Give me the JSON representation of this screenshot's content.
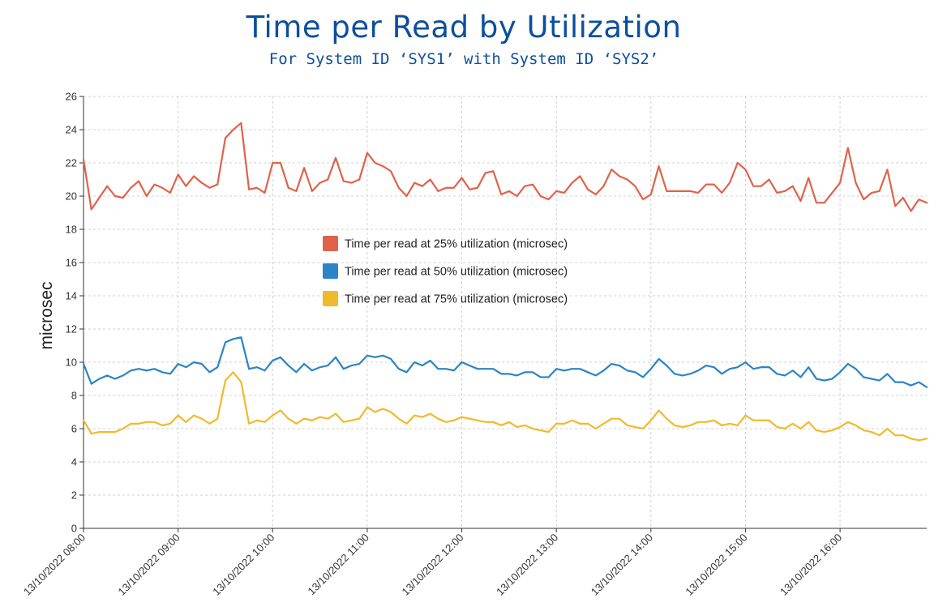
{
  "chart_data": {
    "type": "line",
    "title": "Time per Read by Utilization",
    "subtitle": "For System ID ‘SYS1’ with System ID ‘SYS2’",
    "xlabel": "",
    "ylabel": "microsec",
    "ylim": [
      0,
      26
    ],
    "yticks": [
      0,
      2,
      4,
      6,
      8,
      10,
      12,
      14,
      16,
      18,
      20,
      22,
      24,
      26
    ],
    "xlim": [
      "13/10/2022 08:00",
      "13/10/2022 16:55"
    ],
    "x_tick_labels": [
      "13/10/2022 08:00",
      "13/10/2022 09:00",
      "13/10/2022 10:00",
      "13/10/2022 11:00",
      "13/10/2022 12:00",
      "13/10/2022 13:00",
      "13/10/2022 14:00",
      "13/10/2022 15:00",
      "13/10/2022 16:00"
    ],
    "x": [
      "13/10/2022 08:00",
      "13/10/2022 08:05",
      "13/10/2022 08:10",
      "13/10/2022 08:15",
      "13/10/2022 08:20",
      "13/10/2022 08:25",
      "13/10/2022 08:30",
      "13/10/2022 08:35",
      "13/10/2022 08:40",
      "13/10/2022 08:45",
      "13/10/2022 08:50",
      "13/10/2022 08:55",
      "13/10/2022 09:00",
      "13/10/2022 09:05",
      "13/10/2022 09:10",
      "13/10/2022 09:15",
      "13/10/2022 09:20",
      "13/10/2022 09:25",
      "13/10/2022 09:30",
      "13/10/2022 09:35",
      "13/10/2022 09:40",
      "13/10/2022 09:45",
      "13/10/2022 09:50",
      "13/10/2022 09:55",
      "13/10/2022 10:00",
      "13/10/2022 10:05",
      "13/10/2022 10:10",
      "13/10/2022 10:15",
      "13/10/2022 10:20",
      "13/10/2022 10:25",
      "13/10/2022 10:30",
      "13/10/2022 10:35",
      "13/10/2022 10:40",
      "13/10/2022 10:45",
      "13/10/2022 10:50",
      "13/10/2022 10:55",
      "13/10/2022 11:00",
      "13/10/2022 11:05",
      "13/10/2022 11:10",
      "13/10/2022 11:15",
      "13/10/2022 11:20",
      "13/10/2022 11:25",
      "13/10/2022 11:30",
      "13/10/2022 11:35",
      "13/10/2022 11:40",
      "13/10/2022 11:45",
      "13/10/2022 11:50",
      "13/10/2022 11:55",
      "13/10/2022 12:00",
      "13/10/2022 12:05",
      "13/10/2022 12:10",
      "13/10/2022 12:15",
      "13/10/2022 12:20",
      "13/10/2022 12:25",
      "13/10/2022 12:30",
      "13/10/2022 12:35",
      "13/10/2022 12:40",
      "13/10/2022 12:45",
      "13/10/2022 12:50",
      "13/10/2022 12:55",
      "13/10/2022 13:00",
      "13/10/2022 13:05",
      "13/10/2022 13:10",
      "13/10/2022 13:15",
      "13/10/2022 13:20",
      "13/10/2022 13:25",
      "13/10/2022 13:30",
      "13/10/2022 13:35",
      "13/10/2022 13:40",
      "13/10/2022 13:45",
      "13/10/2022 13:50",
      "13/10/2022 13:55",
      "13/10/2022 14:00",
      "13/10/2022 14:05",
      "13/10/2022 14:10",
      "13/10/2022 14:15",
      "13/10/2022 14:20",
      "13/10/2022 14:25",
      "13/10/2022 14:30",
      "13/10/2022 14:35",
      "13/10/2022 14:40",
      "13/10/2022 14:45",
      "13/10/2022 14:50",
      "13/10/2022 14:55",
      "13/10/2022 15:00",
      "13/10/2022 15:05",
      "13/10/2022 15:10",
      "13/10/2022 15:15",
      "13/10/2022 15:20",
      "13/10/2022 15:25",
      "13/10/2022 15:30",
      "13/10/2022 15:35",
      "13/10/2022 15:40",
      "13/10/2022 15:45",
      "13/10/2022 15:50",
      "13/10/2022 15:55",
      "13/10/2022 16:00",
      "13/10/2022 16:05",
      "13/10/2022 16:10",
      "13/10/2022 16:15",
      "13/10/2022 16:20",
      "13/10/2022 16:25",
      "13/10/2022 16:30",
      "13/10/2022 16:35",
      "13/10/2022 16:40",
      "13/10/2022 16:45",
      "13/10/2022 16:50",
      "13/10/2022 16:55"
    ],
    "series": [
      {
        "name": "Time per read at 25% utilization (microsec)",
        "color": "#e0624a",
        "values": [
          22.2,
          19.2,
          19.9,
          20.6,
          20.0,
          19.9,
          20.5,
          20.9,
          20.0,
          20.7,
          20.5,
          20.2,
          21.3,
          20.6,
          21.2,
          20.8,
          20.5,
          20.7,
          23.5,
          24.0,
          24.4,
          20.4,
          20.5,
          20.2,
          22.0,
          22.0,
          20.5,
          20.3,
          21.7,
          20.3,
          20.8,
          21.0,
          22.3,
          20.9,
          20.8,
          21.0,
          22.6,
          22.0,
          21.8,
          21.5,
          20.5,
          20.0,
          20.8,
          20.6,
          21.0,
          20.3,
          20.5,
          20.5,
          21.1,
          20.4,
          20.5,
          21.4,
          21.5,
          20.1,
          20.3,
          20.0,
          20.6,
          20.7,
          20.0,
          19.8,
          20.3,
          20.2,
          20.8,
          21.2,
          20.4,
          20.1,
          20.6,
          21.6,
          21.2,
          21.0,
          20.6,
          19.8,
          20.1,
          21.8,
          20.3,
          20.3,
          20.3,
          20.3,
          20.2,
          20.7,
          20.7,
          20.2,
          20.8,
          22.0,
          21.6,
          20.6,
          20.6,
          21.0,
          20.2,
          20.3,
          20.6,
          19.7,
          21.1,
          19.6,
          19.6,
          20.2,
          20.8,
          22.9,
          20.8,
          19.8,
          20.2,
          20.3,
          21.6,
          19.4,
          19.9,
          19.1,
          19.8,
          19.6
        ]
      },
      {
        "name": "Time per read at 50% utilization (microsec)",
        "color": "#2b84c5",
        "values": [
          9.9,
          8.7,
          9.0,
          9.2,
          9.0,
          9.2,
          9.5,
          9.6,
          9.5,
          9.6,
          9.4,
          9.3,
          9.9,
          9.7,
          10.0,
          9.9,
          9.4,
          9.7,
          11.2,
          11.4,
          11.5,
          9.6,
          9.7,
          9.5,
          10.1,
          10.3,
          9.8,
          9.4,
          9.9,
          9.5,
          9.7,
          9.8,
          10.3,
          9.6,
          9.8,
          9.9,
          10.4,
          10.3,
          10.4,
          10.2,
          9.6,
          9.4,
          10.0,
          9.8,
          10.1,
          9.6,
          9.6,
          9.5,
          10.0,
          9.8,
          9.6,
          9.6,
          9.6,
          9.3,
          9.3,
          9.2,
          9.4,
          9.4,
          9.1,
          9.1,
          9.6,
          9.5,
          9.6,
          9.6,
          9.4,
          9.2,
          9.5,
          9.9,
          9.8,
          9.5,
          9.4,
          9.1,
          9.6,
          10.2,
          9.8,
          9.3,
          9.2,
          9.3,
          9.5,
          9.8,
          9.7,
          9.3,
          9.6,
          9.7,
          10.0,
          9.6,
          9.7,
          9.7,
          9.3,
          9.2,
          9.5,
          9.1,
          9.7,
          9.0,
          8.9,
          9.0,
          9.4,
          9.9,
          9.6,
          9.1,
          9.0,
          8.9,
          9.3,
          8.8,
          8.8,
          8.6,
          8.8,
          8.5
        ]
      },
      {
        "name": "Time per read at 75% utilization (microsec)",
        "color": "#f1b92c",
        "values": [
          6.5,
          5.7,
          5.8,
          5.8,
          5.8,
          6.0,
          6.3,
          6.3,
          6.4,
          6.4,
          6.2,
          6.3,
          6.8,
          6.4,
          6.8,
          6.6,
          6.3,
          6.6,
          8.9,
          9.4,
          8.8,
          6.3,
          6.5,
          6.4,
          6.8,
          7.1,
          6.6,
          6.3,
          6.6,
          6.5,
          6.7,
          6.6,
          6.9,
          6.4,
          6.5,
          6.6,
          7.3,
          7.0,
          7.2,
          7.0,
          6.6,
          6.3,
          6.8,
          6.7,
          6.9,
          6.6,
          6.4,
          6.5,
          6.7,
          6.6,
          6.5,
          6.4,
          6.4,
          6.2,
          6.4,
          6.1,
          6.2,
          6.0,
          5.9,
          5.8,
          6.3,
          6.3,
          6.5,
          6.3,
          6.3,
          6.0,
          6.3,
          6.6,
          6.6,
          6.2,
          6.1,
          6.0,
          6.5,
          7.1,
          6.6,
          6.2,
          6.1,
          6.2,
          6.4,
          6.4,
          6.5,
          6.2,
          6.3,
          6.2,
          6.8,
          6.5,
          6.5,
          6.5,
          6.1,
          6.0,
          6.3,
          6.0,
          6.4,
          5.9,
          5.8,
          5.9,
          6.1,
          6.4,
          6.2,
          5.9,
          5.8,
          5.6,
          6.0,
          5.6,
          5.6,
          5.4,
          5.3,
          5.4
        ]
      }
    ],
    "grid": true,
    "legend_position": "center-left"
  }
}
